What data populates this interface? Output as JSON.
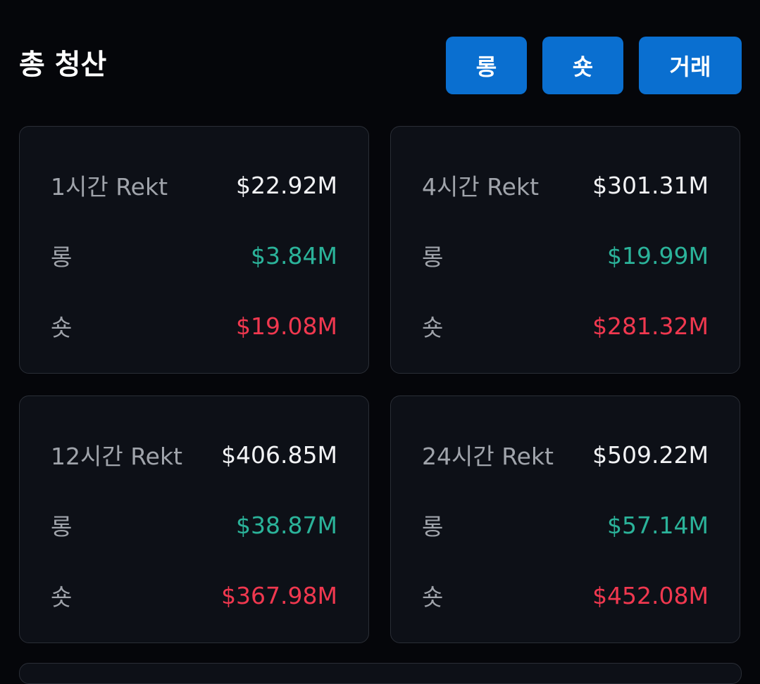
{
  "header": {
    "title": "총 청산",
    "buttons": [
      "롱",
      "숏",
      "거래"
    ]
  },
  "cards": [
    {
      "label": "1시간 Rekt",
      "total": "$22.92M",
      "long_label": "롱",
      "long": "$3.84M",
      "short_label": "숏",
      "short": "$19.08M"
    },
    {
      "label": "4시간 Rekt",
      "total": "$301.31M",
      "long_label": "롱",
      "long": "$19.99M",
      "short_label": "숏",
      "short": "$281.32M"
    },
    {
      "label": "12시간 Rekt",
      "total": "$406.85M",
      "long_label": "롱",
      "long": "$38.87M",
      "short_label": "숏",
      "short": "$367.98M"
    },
    {
      "label": "24시간 Rekt",
      "total": "$509.22M",
      "long_label": "롱",
      "long": "$57.14M",
      "short_label": "숏",
      "short": "$452.08M"
    }
  ]
}
